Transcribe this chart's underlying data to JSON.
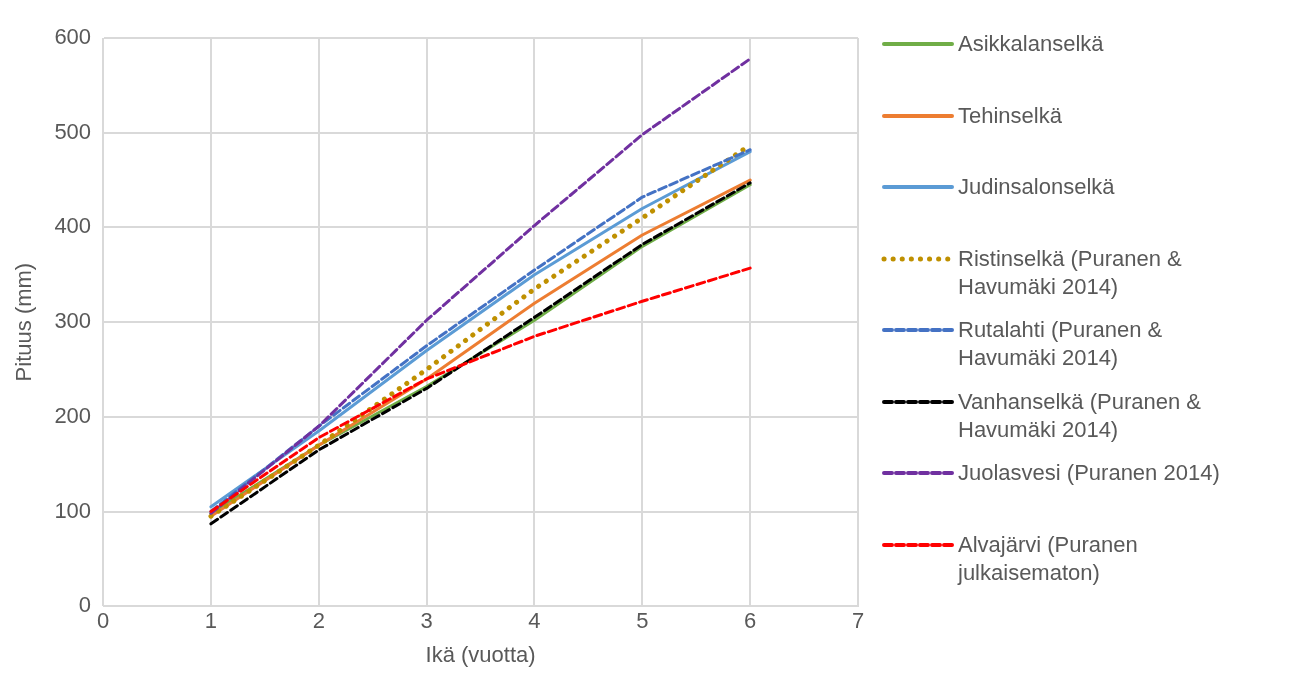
{
  "chart_data": {
    "type": "line",
    "xlabel": "Ikä (vuotta)",
    "ylabel": "Pituus (mm)",
    "x": [
      1,
      2,
      3,
      4,
      5,
      6
    ],
    "xlim": [
      0,
      7
    ],
    "xticks": [
      0,
      1,
      2,
      3,
      4,
      5,
      6,
      7
    ],
    "ylim": [
      0,
      600
    ],
    "yticks": [
      0,
      100,
      200,
      300,
      400,
      500,
      600
    ],
    "grid": true,
    "legend": "right",
    "marker": "none",
    "series": [
      {
        "name": "Asikkalanselkä",
        "color": "#70ad47",
        "line_style": "solid",
        "values": [
          98,
          170,
          232,
          302,
          380,
          445
        ]
      },
      {
        "name": "Tehinselkä",
        "color": "#ed7d31",
        "line_style": "solid",
        "values": [
          95,
          170,
          240,
          320,
          392,
          450
        ]
      },
      {
        "name": "Judinsalonselkä",
        "color": "#5b9bd5",
        "line_style": "solid",
        "values": [
          105,
          185,
          270,
          350,
          420,
          480
        ]
      },
      {
        "name": "Ristinselkä (Puranen & Havumäki 2014)",
        "color": "#bf9000",
        "line_style": "dotted",
        "values": [
          95,
          170,
          250,
          335,
          410,
          487
        ]
      },
      {
        "name": "Rutalahti (Puranen & Havumäki 2014)",
        "color": "#4472c4",
        "line_style": "dashed",
        "values": [
          100,
          190,
          275,
          355,
          432,
          482
        ]
      },
      {
        "name": "Vanhanselkä (Puranen & Havumäki 2014)",
        "color": "#000000",
        "line_style": "dashed",
        "values": [
          87,
          165,
          230,
          305,
          382,
          447
        ]
      },
      {
        "name": "Juolasvesi (Puranen 2014)",
        "color": "#7030a0",
        "line_style": "dashed",
        "values": [
          98,
          190,
          302,
          402,
          498,
          578
        ]
      },
      {
        "name": "Alvajärvi (Puranen julkaisematon)",
        "color": "#ff0000",
        "line_style": "dashed",
        "values": [
          100,
          178,
          240,
          285,
          322,
          357
        ]
      }
    ]
  }
}
